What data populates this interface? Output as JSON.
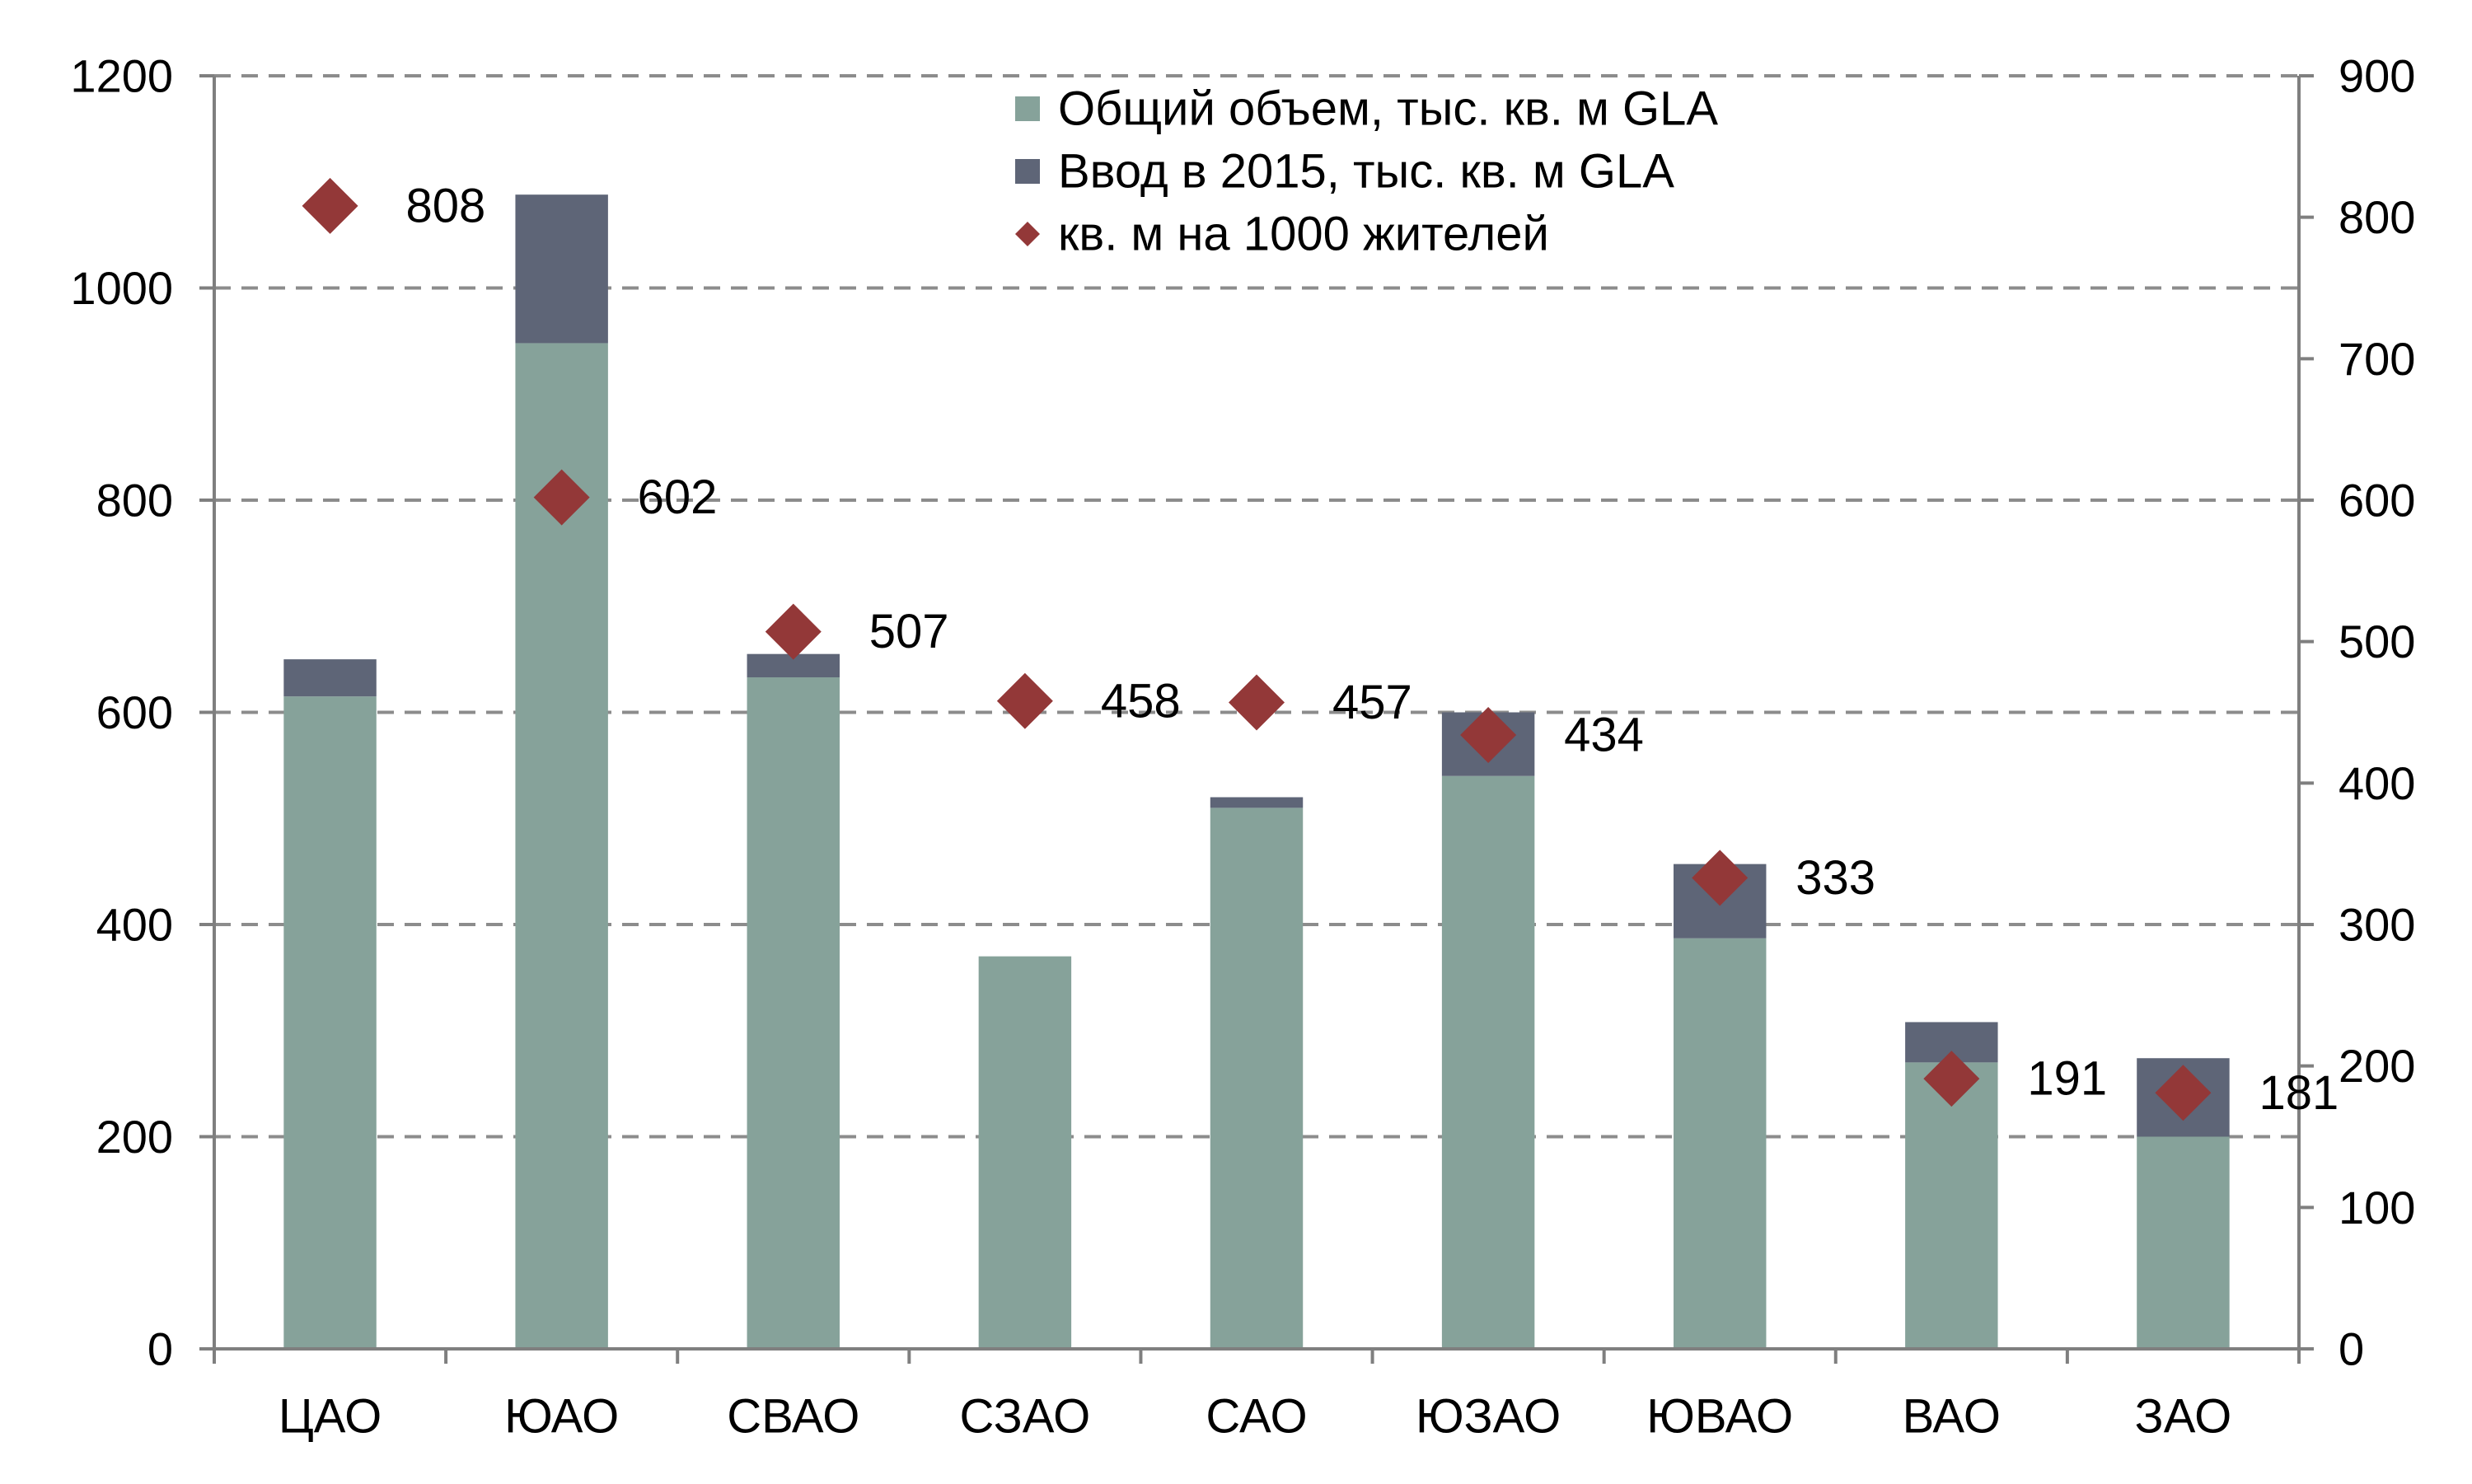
{
  "chart_data": {
    "type": "bar",
    "categories": [
      "ЦАО",
      "ЮАО",
      "СВАО",
      "СЗАО",
      "САО",
      "ЮЗАО",
      "ЮВАО",
      "ВАО",
      "ЗАО"
    ],
    "series": [
      {
        "name": "Общий объем, тыс. кв. м GLA",
        "kind": "bar-stacked",
        "axis": "left",
        "color": "#86a29a",
        "values": [
          615,
          948,
          633,
          370,
          510,
          540,
          387,
          270,
          200
        ]
      },
      {
        "name": "Ввод в 2015, тыс. кв. м GLA",
        "kind": "bar-stacked",
        "axis": "left",
        "color": "#5e6577",
        "values": [
          35,
          140,
          22,
          0,
          10,
          60,
          70,
          38,
          74
        ]
      },
      {
        "name": "кв. м на 1000 жителей",
        "kind": "scatter-diamond",
        "axis": "right",
        "color": "#933838",
        "values": [
          808,
          602,
          507,
          458,
          457,
          434,
          333,
          191,
          181
        ],
        "labels": [
          "808",
          "602",
          "507",
          "458",
          "457",
          "434",
          "333",
          "191",
          "181"
        ]
      }
    ],
    "y_left": {
      "min": 0,
      "max": 1200,
      "ticks": [
        "0",
        "200",
        "400",
        "600",
        "800",
        "1000",
        "1200"
      ]
    },
    "y_right": {
      "min": 0,
      "max": 900,
      "ticks": [
        "0",
        "100",
        "200",
        "300",
        "400",
        "500",
        "600",
        "700",
        "800",
        "900"
      ]
    },
    "grid": "dashed-horizontal",
    "legend_position": "top-center",
    "title": "",
    "xlabel": "",
    "ylabel": ""
  }
}
